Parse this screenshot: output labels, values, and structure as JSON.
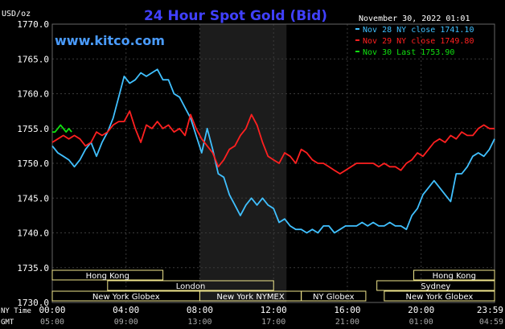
{
  "chart_data": {
    "type": "line",
    "title": "24 Hour Spot Gold (Bid)",
    "source_label": "www.kitco.com",
    "datetime": "November 30, 2022 01:01",
    "ylabel": "USD/oz",
    "ylim": [
      1730,
      1770
    ],
    "yticks": [
      "1770.0",
      "1765.0",
      "1760.0",
      "1755.0",
      "1750.0",
      "1745.0",
      "1740.0",
      "1735.0",
      "1730.0"
    ],
    "x_axis_rows": [
      {
        "label": "NY Time",
        "ticks": [
          "00:00",
          "04:00",
          "08:00",
          "12:00",
          "16:00",
          "20:00",
          "23:59"
        ]
      },
      {
        "label": "GMT",
        "ticks": [
          "05:00",
          "09:00",
          "13:00",
          "17:00",
          "21:00",
          "01:00",
          "04:59"
        ]
      }
    ],
    "shaded_session_hours": [
      8.0,
      12.7
    ],
    "colors": {
      "background": "#000000",
      "grid": "#3a3a3a",
      "session_bg": "#1c1c1c",
      "axis_text": "#ffffff",
      "title": "#4040ff",
      "url": "#4a9cff",
      "market_bar": "#f0e68c",
      "market_text": "#ffffff"
    },
    "series": [
      {
        "name": "Nov 28 NY close 1741.10",
        "color": "#40c0ff",
        "x": [
          0,
          0.3,
          0.6,
          0.9,
          1.2,
          1.5,
          1.8,
          2.1,
          2.4,
          2.7,
          3.0,
          3.3,
          3.6,
          3.9,
          4.2,
          4.5,
          4.8,
          5.1,
          5.4,
          5.7,
          6.0,
          6.3,
          6.6,
          6.9,
          7.2,
          7.5,
          7.8,
          8.1,
          8.4,
          8.7,
          9.0,
          9.3,
          9.6,
          9.9,
          10.2,
          10.5,
          10.8,
          11.1,
          11.4,
          11.7,
          12.0,
          12.3,
          12.6,
          12.9,
          13.2,
          13.5,
          13.8,
          14.1,
          14.4,
          14.7,
          15.0,
          15.3,
          15.6,
          15.9,
          16.2,
          16.5,
          16.8,
          17.1,
          17.4,
          17.7,
          18.0,
          18.3,
          18.6,
          18.9,
          19.2,
          19.5,
          19.8,
          20.1,
          20.4,
          20.7,
          21.0,
          21.3,
          21.6,
          21.9,
          22.2,
          22.5,
          22.8,
          23.1,
          23.4,
          23.7,
          23.98
        ],
        "values": [
          1752.5,
          1751.5,
          1751.0,
          1750.5,
          1749.5,
          1750.5,
          1752.0,
          1753.0,
          1751.0,
          1753.0,
          1754.5,
          1756.5,
          1759.5,
          1762.5,
          1761.5,
          1762.0,
          1763.0,
          1762.5,
          1763.0,
          1763.5,
          1762.0,
          1762.0,
          1760.0,
          1759.5,
          1758.0,
          1756.5,
          1754.0,
          1751.5,
          1755.0,
          1752.0,
          1748.5,
          1748.0,
          1745.5,
          1744.0,
          1742.5,
          1744.0,
          1745.0,
          1744.0,
          1745.0,
          1744.0,
          1743.5,
          1741.5,
          1742.0,
          1741.0,
          1740.5,
          1740.5,
          1740.0,
          1740.5,
          1740.0,
          1741.0,
          1741.0,
          1740.0,
          1740.5,
          1741.0,
          1741.0,
          1741.0,
          1741.5,
          1741.0,
          1741.5,
          1741.0,
          1741.0,
          1741.5,
          1741.0,
          1741.0,
          1740.5,
          1742.5,
          1743.5,
          1745.5,
          1746.5,
          1747.5,
          1746.5,
          1745.5,
          1744.5,
          1748.5,
          1748.5,
          1749.5,
          1751.0,
          1751.5,
          1751.0,
          1752.0,
          1753.5
        ]
      },
      {
        "name": "Nov 29 NY close 1749.80",
        "color": "#ff2020",
        "x": [
          0,
          0.3,
          0.6,
          0.9,
          1.2,
          1.5,
          1.8,
          2.1,
          2.4,
          2.7,
          3.0,
          3.3,
          3.6,
          3.9,
          4.2,
          4.5,
          4.8,
          5.1,
          5.4,
          5.7,
          6.0,
          6.3,
          6.6,
          6.9,
          7.2,
          7.5,
          7.8,
          8.1,
          8.4,
          8.7,
          9.0,
          9.3,
          9.6,
          9.9,
          10.2,
          10.5,
          10.8,
          11.1,
          11.4,
          11.7,
          12.0,
          12.3,
          12.6,
          12.9,
          13.2,
          13.5,
          13.8,
          14.1,
          14.4,
          14.7,
          15.0,
          15.3,
          15.6,
          15.9,
          16.2,
          16.5,
          16.8,
          17.1,
          17.4,
          17.7,
          18.0,
          18.3,
          18.6,
          18.9,
          19.2,
          19.5,
          19.8,
          20.1,
          20.4,
          20.7,
          21.0,
          21.3,
          21.6,
          21.9,
          22.2,
          22.5,
          22.8,
          23.1,
          23.4,
          23.7,
          23.98
        ],
        "values": [
          1753.0,
          1753.5,
          1754.0,
          1753.5,
          1754.0,
          1753.5,
          1752.5,
          1753.0,
          1754.5,
          1754.0,
          1754.5,
          1755.5,
          1756.0,
          1756.0,
          1757.5,
          1755.0,
          1753.0,
          1755.5,
          1755.0,
          1756.0,
          1755.0,
          1755.5,
          1754.5,
          1755.0,
          1754.0,
          1757.0,
          1755.0,
          1753.5,
          1752.5,
          1751.5,
          1749.5,
          1750.5,
          1752.0,
          1752.5,
          1754.0,
          1755.0,
          1757.0,
          1755.5,
          1753.0,
          1751.0,
          1750.5,
          1750.0,
          1751.5,
          1751.0,
          1750.0,
          1752.0,
          1751.5,
          1750.5,
          1750.0,
          1750.0,
          1749.5,
          1749.0,
          1748.5,
          1749.0,
          1749.5,
          1750.0,
          1750.0,
          1750.0,
          1750.0,
          1749.5,
          1750.0,
          1749.5,
          1749.5,
          1749.0,
          1750.0,
          1750.5,
          1751.5,
          1751.0,
          1752.0,
          1753.0,
          1753.5,
          1753.0,
          1754.0,
          1753.5,
          1754.5,
          1754.0,
          1754.0,
          1755.0,
          1755.5,
          1755.0,
          1755.0
        ]
      },
      {
        "name": "Nov 30 Last 1753.90",
        "color": "#10e010",
        "x": [
          0,
          0.15,
          0.3,
          0.45,
          0.6,
          0.75,
          0.9,
          1.05
        ],
        "values": [
          1754.5,
          1754.5,
          1755.0,
          1755.5,
          1755.0,
          1754.5,
          1755.0,
          1754.5
        ]
      }
    ],
    "markets": [
      {
        "name": "Hong Kong",
        "row": 0,
        "start": 0,
        "end": 6.0
      },
      {
        "name": "Hong Kong",
        "row": 0,
        "start": 19.6,
        "end": 23.98
      },
      {
        "name": "London",
        "row": 1,
        "start": 3.0,
        "end": 12.0
      },
      {
        "name": "Sydney",
        "row": 1,
        "start": 17.6,
        "end": 23.98
      },
      {
        "name": "New York Globex",
        "row": 2,
        "start": 0,
        "end": 8.0
      },
      {
        "name": "New York NYMEX",
        "row": 2,
        "start": 8.0,
        "end": 13.5
      },
      {
        "name": "NY Globex",
        "row": 2,
        "start": 13.5,
        "end": 17.0
      },
      {
        "name": "New York Globex",
        "row": 2,
        "start": 18.0,
        "end": 23.98
      }
    ],
    "grid": true,
    "legend_position": "top-right"
  }
}
